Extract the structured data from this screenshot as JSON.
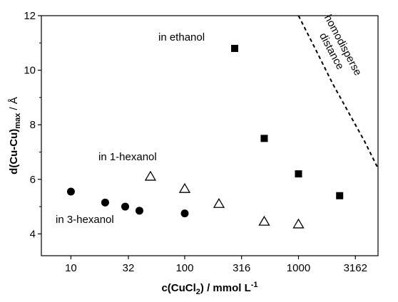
{
  "chart_data": {
    "type": "scatter",
    "title": "",
    "x_scale": "log",
    "xlim": [
      5.5,
      5000
    ],
    "ylim": [
      3.2,
      12
    ],
    "x_ticks": [
      10,
      32,
      100,
      316,
      1000,
      3162
    ],
    "x_tick_labels": [
      "10",
      "32",
      "100",
      "316",
      "1000",
      "3162"
    ],
    "y_ticks": [
      4,
      6,
      8,
      10,
      12
    ],
    "y_tick_labels": [
      "4",
      "6",
      "8",
      "10",
      "12"
    ],
    "xlabel": {
      "pre": "c(CuCl",
      "sub": "2",
      "mid": ") / mmol L",
      "sup": "-1"
    },
    "ylabel": {
      "pre": "d(Cu-Cu)",
      "sub": "max",
      "post": " / Å"
    },
    "grid": false,
    "series": [
      {
        "name": "in ethanol",
        "marker": "square",
        "color": "#000000",
        "points": [
          [
            275,
            10.8
          ],
          [
            500,
            7.5
          ],
          [
            1000,
            6.2
          ],
          [
            2300,
            5.4
          ]
        ]
      },
      {
        "name": "in 1-hexanol",
        "marker": "triangle-open",
        "color": "#000000",
        "points": [
          [
            50,
            6.1
          ],
          [
            100,
            5.65
          ],
          [
            200,
            5.1
          ],
          [
            500,
            4.45
          ],
          [
            1000,
            4.35
          ]
        ]
      },
      {
        "name": "in 3-hexanol",
        "marker": "circle",
        "color": "#000000",
        "points": [
          [
            10,
            5.55
          ],
          [
            20,
            5.15
          ],
          [
            30,
            5.0
          ],
          [
            40,
            4.85
          ],
          [
            100,
            4.75
          ]
        ]
      }
    ],
    "curve": {
      "name": "homodisperse distance",
      "label_line1": "homodisperse",
      "label_line2": "distance",
      "style": "dashed",
      "points": [
        [
          1000,
          12
        ],
        [
          1400,
          10.8
        ],
        [
          2000,
          9.5
        ],
        [
          2800,
          8.4
        ],
        [
          3800,
          7.4
        ],
        [
          5000,
          6.4
        ]
      ]
    }
  }
}
